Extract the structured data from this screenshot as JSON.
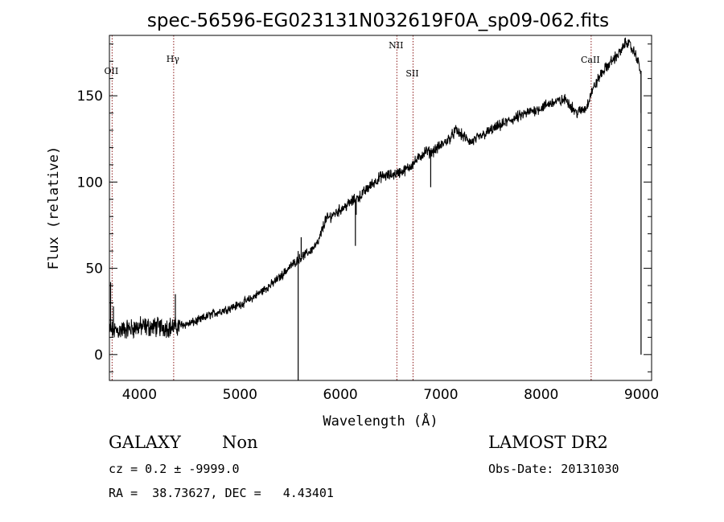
{
  "chart_data": {
    "type": "line",
    "title": "spec-56596-EG023131N032619F0A_sp09-062.fits",
    "xlabel": "Wavelength (Å)",
    "ylabel": "Flux (relative)",
    "xlim": [
      3700,
      9100
    ],
    "ylim": [
      -15,
      185
    ],
    "xticks": [
      4000,
      5000,
      6000,
      7000,
      8000,
      9000
    ],
    "yticks": [
      0,
      50,
      100,
      150
    ],
    "xtick_labels": [
      "4000",
      "5000",
      "6000",
      "7000",
      "8000",
      "9000"
    ],
    "ytick_labels": [
      "0",
      "50",
      "100",
      "150"
    ],
    "grid": false,
    "series": [
      {
        "continuum": [
          [
            3700,
            14
          ],
          [
            3800,
            14
          ],
          [
            3900,
            15
          ],
          [
            4000,
            16
          ],
          [
            4100,
            16
          ],
          [
            4200,
            16
          ],
          [
            4300,
            16
          ],
          [
            4350,
            16
          ],
          [
            4400,
            17
          ],
          [
            4500,
            18
          ],
          [
            4600,
            20
          ],
          [
            4700,
            23
          ],
          [
            4800,
            25
          ],
          [
            4900,
            27
          ],
          [
            5000,
            29
          ],
          [
            5100,
            32
          ],
          [
            5200,
            36
          ],
          [
            5300,
            40
          ],
          [
            5400,
            45
          ],
          [
            5500,
            51
          ],
          [
            5600,
            56
          ],
          [
            5700,
            60
          ],
          [
            5780,
            65
          ],
          [
            5850,
            78
          ],
          [
            5900,
            80
          ],
          [
            6000,
            84
          ],
          [
            6100,
            88
          ],
          [
            6200,
            92
          ],
          [
            6300,
            98
          ],
          [
            6400,
            103
          ],
          [
            6500,
            104
          ],
          [
            6560,
            105
          ],
          [
            6650,
            107
          ],
          [
            6750,
            112
          ],
          [
            6850,
            118
          ],
          [
            6900,
            117
          ],
          [
            7000,
            121
          ],
          [
            7100,
            126
          ],
          [
            7150,
            130
          ],
          [
            7300,
            123
          ],
          [
            7500,
            130
          ],
          [
            7700,
            136
          ],
          [
            7900,
            141
          ],
          [
            8000,
            143
          ],
          [
            8100,
            146
          ],
          [
            8200,
            147
          ],
          [
            8250,
            148
          ],
          [
            8350,
            140
          ],
          [
            8450,
            143
          ],
          [
            8500,
            152
          ],
          [
            8600,
            163
          ],
          [
            8700,
            170
          ],
          [
            8800,
            176
          ],
          [
            8850,
            182
          ],
          [
            8950,
            173
          ],
          [
            9000,
            162
          ]
        ],
        "spikes": [
          [
            3712,
            42
          ],
          [
            3740,
            28
          ],
          [
            4357,
            35
          ],
          [
            5580,
            -15
          ],
          [
            5580,
            60
          ],
          [
            5610,
            68
          ],
          [
            6150,
            63
          ],
          [
            6158,
            81
          ],
          [
            6900,
            97
          ],
          [
            8995,
            0
          ],
          [
            8995,
            140
          ]
        ]
      }
    ],
    "lines": [
      {
        "label": "OII",
        "x": 3727
      },
      {
        "label": "Hγ",
        "x": 4340
      },
      {
        "label": "NII",
        "x": 6563
      },
      {
        "label": "SII",
        "x": 6724
      },
      {
        "label": "CaII",
        "x": 8498
      }
    ],
    "line_color": "#8b1a1a"
  },
  "info": {
    "class": "GALAXY",
    "subclass": "Non",
    "survey": "LAMOST DR2",
    "cz": "cz = 0.2 ± -9999.0",
    "obs_date": "Obs-Date: 20131030",
    "coords": "RA =  38.73627, DEC =   4.43401"
  }
}
